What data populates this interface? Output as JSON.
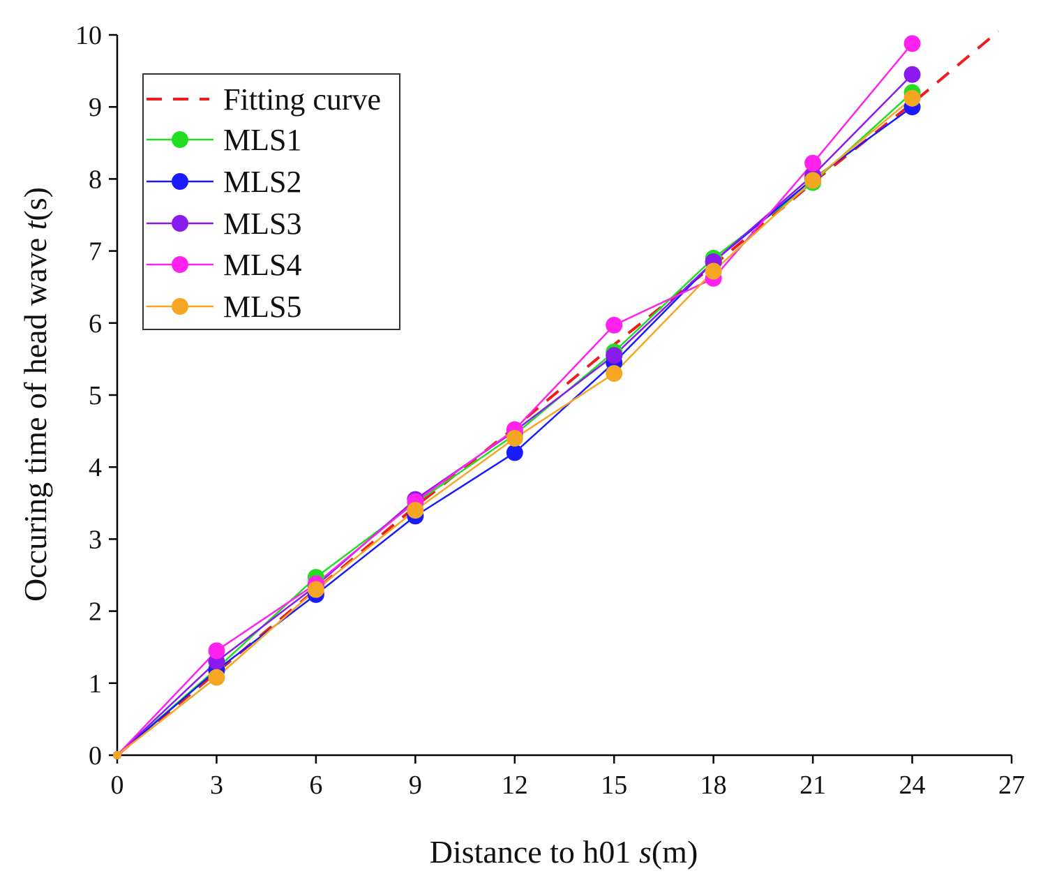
{
  "chart_data": {
    "type": "line",
    "xlabel_prefix": "Distance to h01 ",
    "xlabel_var": "s",
    "xlabel_suffix": "(m)",
    "ylabel_prefix": "Occuring time of head wave ",
    "ylabel_var": "t",
    "ylabel_suffix": "(s)",
    "xlim": [
      0,
      27
    ],
    "ylim": [
      0,
      10
    ],
    "xticks": [
      0,
      3,
      6,
      9,
      12,
      15,
      18,
      21,
      24,
      27
    ],
    "yticks": [
      0,
      1,
      2,
      3,
      4,
      5,
      6,
      7,
      8,
      9,
      10
    ],
    "x": [
      0,
      3,
      6,
      9,
      12,
      15,
      18,
      21,
      24
    ],
    "fitting_curve": {
      "name": "Fitting curve",
      "color": "#ee1c1c",
      "x": [
        0,
        3,
        6,
        9,
        12,
        15,
        18,
        21,
        24,
        26.6
      ],
      "y": [
        0,
        1.15,
        2.3,
        3.45,
        4.55,
        5.7,
        6.8,
        7.95,
        9.05,
        10.05
      ]
    },
    "series": [
      {
        "name": "MLS1",
        "color": "#22dd22",
        "values": [
          0,
          1.2,
          2.47,
          3.5,
          4.45,
          5.6,
          6.9,
          7.95,
          9.2
        ]
      },
      {
        "name": "MLS2",
        "color": "#1a1aff",
        "values": [
          0,
          1.18,
          2.23,
          3.32,
          4.2,
          5.45,
          6.85,
          8.0,
          9.0
        ]
      },
      {
        "name": "MLS3",
        "color": "#8a1aee",
        "values": [
          0,
          1.3,
          2.35,
          3.55,
          4.5,
          5.55,
          6.85,
          8.05,
          9.45
        ]
      },
      {
        "name": "MLS4",
        "color": "#ff22ee",
        "values": [
          0,
          1.45,
          2.38,
          3.52,
          4.52,
          5.97,
          6.62,
          8.22,
          9.88
        ]
      },
      {
        "name": "MLS5",
        "color": "#f5a623",
        "values": [
          0,
          1.08,
          2.3,
          3.4,
          4.4,
          5.3,
          6.72,
          7.98,
          9.12
        ]
      }
    ]
  }
}
